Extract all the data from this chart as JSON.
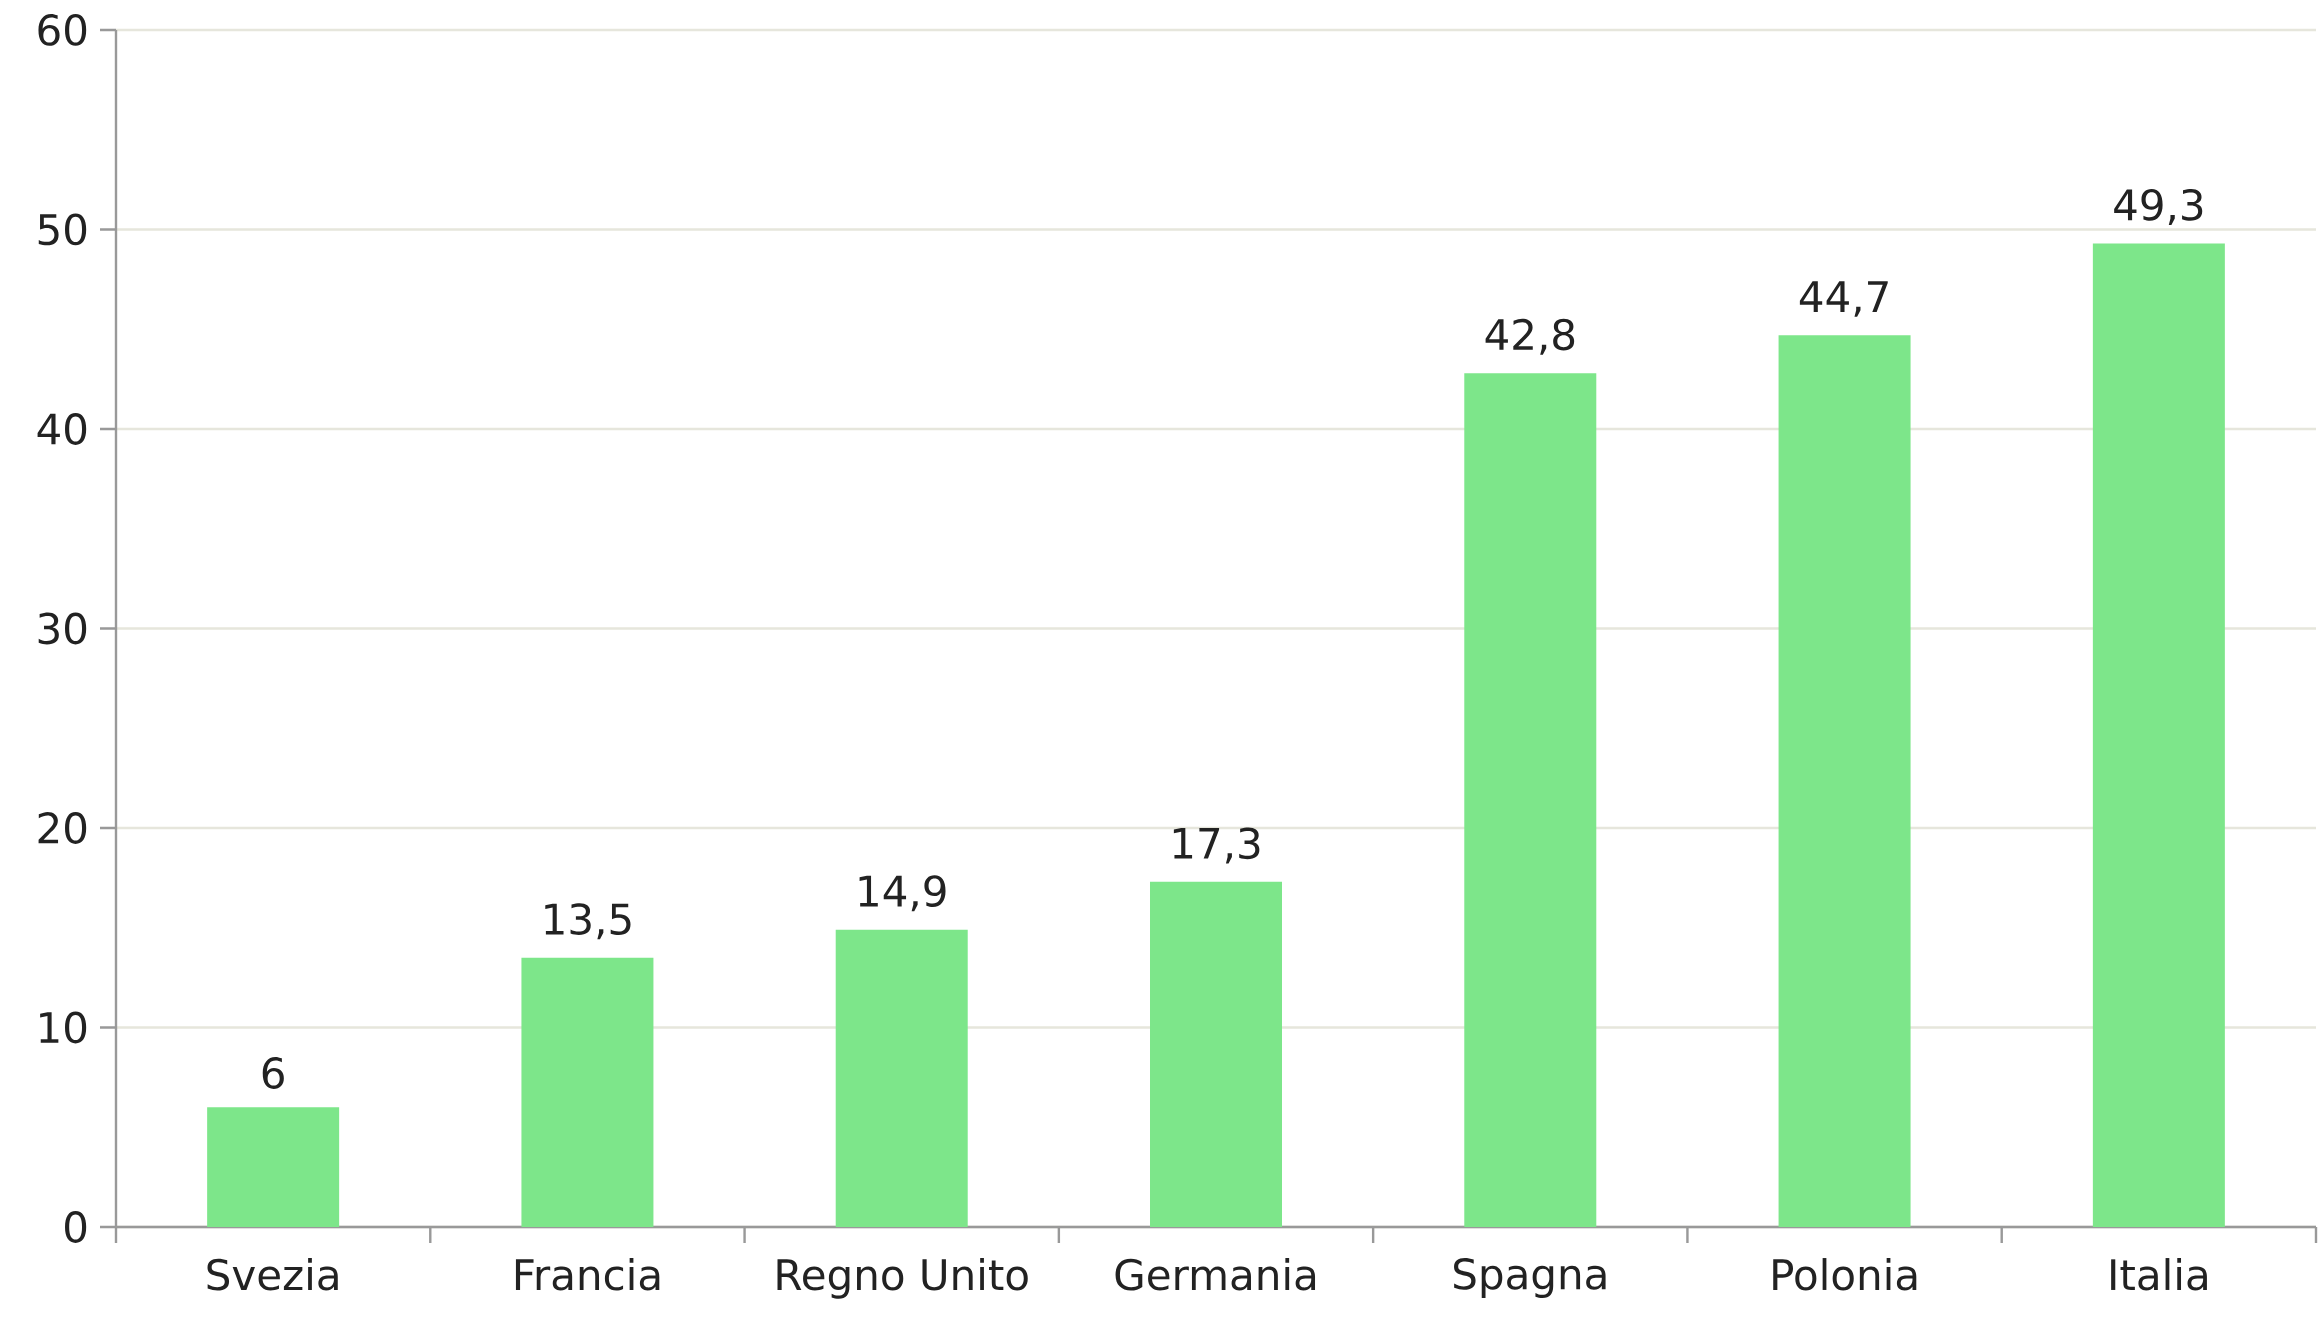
{
  "chart_data": {
    "type": "bar",
    "categories": [
      "Svezia",
      "Francia",
      "Regno Unito",
      "Germania",
      "Spagna",
      "Polonia",
      "Italia"
    ],
    "values": [
      6,
      13.5,
      14.9,
      17.3,
      42.8,
      44.7,
      49.3
    ],
    "value_labels": [
      "6",
      "13,5",
      "14,9",
      "17,3",
      "42,8",
      "44,7",
      "49,3"
    ],
    "color": "#7de68a",
    "ylim": [
      0,
      60
    ],
    "yticks": [
      0,
      10,
      20,
      30,
      40,
      50,
      60
    ],
    "grid": "y"
  }
}
